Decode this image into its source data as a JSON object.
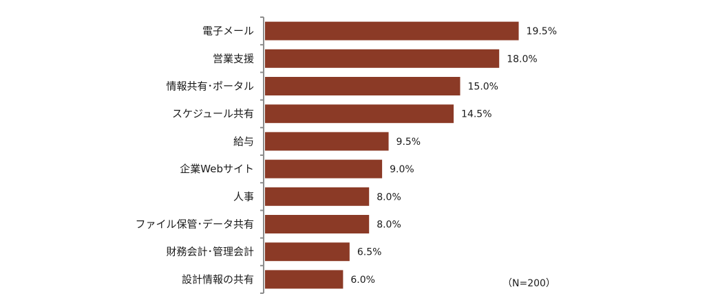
{
  "chart_data": {
    "type": "bar",
    "orientation": "horizontal",
    "categories": [
      "電子メール",
      "営業支援",
      "情報共有･ポータル",
      "スケジュール共有",
      "給与",
      "企業Webサイト",
      "人事",
      "ファイル保管･データ共有",
      "財務会計･管理会計",
      "設計情報の共有"
    ],
    "values": [
      19.5,
      18.0,
      15.0,
      14.5,
      9.5,
      9.0,
      8.0,
      8.0,
      6.5,
      6.0
    ],
    "value_labels": [
      "19.5%",
      "18.0%",
      "15.0%",
      "14.5%",
      "9.5%",
      "9.0%",
      "8.0%",
      "8.0%",
      "6.5%",
      "6.0%"
    ],
    "xlim": [
      0,
      20
    ],
    "grid": false,
    "bar_color": "#8b3a26",
    "note": "（N=200）"
  }
}
